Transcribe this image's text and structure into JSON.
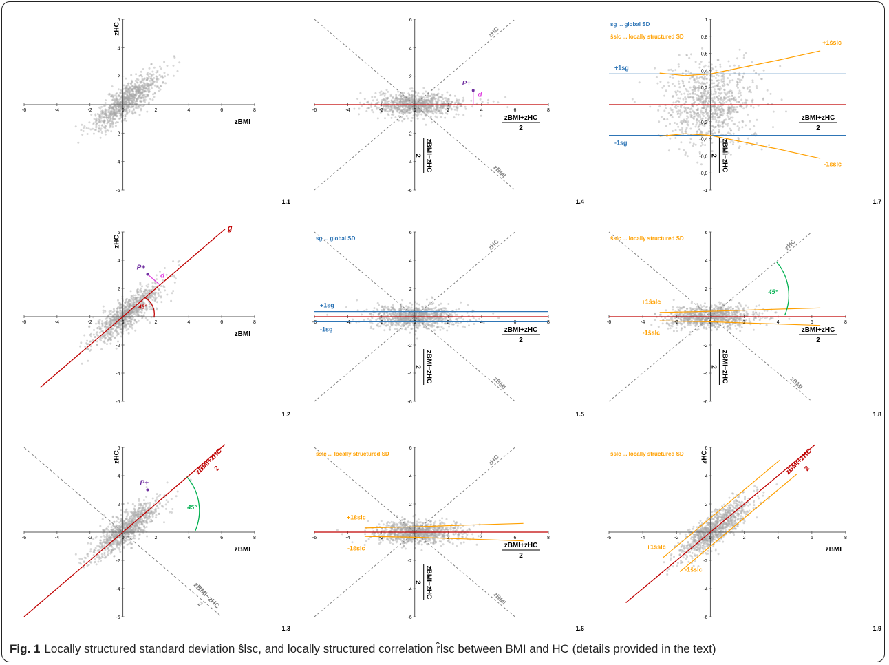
{
  "figure": {
    "caption_label": "Fig. 1",
    "caption_text": "Locally structured standard deviation ŝlsc, and locally structured correlation r̂lsc between BMI and HC (details provided in the text)"
  },
  "chart_data": [
    {
      "id": "1.1",
      "type": "scatter",
      "xlabel": "zBMI",
      "ylabel": "zHC",
      "xlim": [
        -6,
        8
      ],
      "ylim": [
        -6,
        6
      ],
      "xticks": [
        -6,
        -4,
        -2,
        0,
        2,
        4,
        6,
        8
      ],
      "yticks": [
        -6,
        -4,
        -2,
        0,
        2,
        4,
        6
      ],
      "cloud": {
        "orientation": "diagonal",
        "spread_major": 1.3,
        "spread_minor": 0.4
      }
    },
    {
      "id": "1.2",
      "type": "scatter",
      "xlabel": "zBMI",
      "ylabel": "zHC",
      "xlim": [
        -6,
        8
      ],
      "ylim": [
        -6,
        6
      ],
      "xticks": [
        -6,
        -4,
        -2,
        0,
        2,
        4,
        6,
        8
      ],
      "yticks": [
        -6,
        -4,
        -2,
        0,
        2,
        4,
        6
      ],
      "cloud": {
        "orientation": "diagonal",
        "spread_major": 1.3,
        "spread_minor": 0.4
      },
      "line_g": {
        "x1": -5,
        "x2": 6.2
      },
      "line_label": "g",
      "angle_label": "45°",
      "point_label": "P+",
      "distance_label": "d"
    },
    {
      "id": "1.3",
      "type": "scatter",
      "xlabel": "zBMI",
      "ylabel": "zHC",
      "xlim": [
        -6,
        8
      ],
      "ylim": [
        -6,
        6
      ],
      "xticks": [
        -6,
        -4,
        -2,
        0,
        2,
        4,
        6,
        8
      ],
      "yticks": [
        -6,
        -4,
        -2,
        0,
        2,
        4,
        6
      ],
      "cloud": {
        "orientation": "diagonal",
        "spread_major": 1.3,
        "spread_minor": 0.4
      },
      "rotated_axis_num": "zBMI+zHC",
      "rotated_axis_den": "2",
      "dashed_axis_num": "zBMI−zHC",
      "dashed_axis_den": "2",
      "angle_label": "45°",
      "point_label": "P+"
    },
    {
      "id": "1.4",
      "type": "scatter",
      "xlabel_num": "zBMI+zHC",
      "xlabel_den": "2",
      "ylabel_num": "zBMI−zHC",
      "ylabel_den": "2",
      "xlim": [
        -6,
        8
      ],
      "ylim": [
        -6,
        6
      ],
      "xticks": [
        -6,
        -4,
        -2,
        0,
        2,
        4,
        6,
        8
      ],
      "yticks": [
        -6,
        -4,
        -2,
        0,
        2,
        4,
        6
      ],
      "cloud": {
        "orientation": "horizontal",
        "spread_major": 1.3,
        "spread_minor": 0.4
      },
      "diag_labels": [
        "zHC",
        "zBMI"
      ],
      "point_label": "P+",
      "distance_label": "d"
    },
    {
      "id": "1.5",
      "type": "scatter",
      "xlabel_num": "zBMI+zHC",
      "xlabel_den": "2",
      "ylabel_num": "zBMI−zHC",
      "ylabel_den": "2",
      "xlim": [
        -6,
        8
      ],
      "ylim": [
        -6,
        6
      ],
      "xticks": [
        -6,
        -4,
        -2,
        0,
        2,
        4,
        6,
        8
      ],
      "yticks": [
        -6,
        -4,
        -2,
        0,
        2,
        4,
        6
      ],
      "cloud": {
        "orientation": "horizontal",
        "spread_major": 1.3,
        "spread_minor": 0.4
      },
      "diag_labels": [
        "zHC",
        "zBMI"
      ],
      "legend_text": "sg ... global SD",
      "band_sd": 0.36,
      "band_labels": [
        "+1sg",
        "-1sg"
      ]
    },
    {
      "id": "1.6",
      "type": "scatter",
      "xlabel_num": "zBMI+zHC",
      "xlabel_den": "2",
      "ylabel_num": "zBMI−zHC",
      "ylabel_den": "2",
      "xlim": [
        -6,
        8
      ],
      "ylim": [
        -6,
        6
      ],
      "xticks": [
        -6,
        -4,
        -2,
        0,
        2,
        4,
        6,
        8
      ],
      "yticks": [
        -6,
        -4,
        -2,
        0,
        2,
        4,
        6
      ],
      "cloud": {
        "orientation": "horizontal",
        "spread_major": 1.3,
        "spread_minor": 0.4
      },
      "diag_labels": [
        "zHC",
        "zBMI"
      ],
      "legend_text": "ŝslc ... locally structured SD",
      "local_sd_upper": [
        [
          -3,
          0.3
        ],
        [
          0,
          0.38
        ],
        [
          3,
          0.5
        ],
        [
          6.5,
          0.62
        ]
      ],
      "local_sd_lower": [
        [
          -3,
          -0.3
        ],
        [
          0,
          -0.36
        ],
        [
          3,
          -0.48
        ],
        [
          6.5,
          -0.62
        ]
      ],
      "band_labels": [
        "+1ŝslc",
        "-1ŝslc"
      ]
    },
    {
      "id": "1.7",
      "type": "scatter",
      "xlabel_num": "zBMI+zHC",
      "xlabel_den": "2",
      "ylabel_num": "zBMI−zHC",
      "ylabel_den": "2",
      "xlim": [
        -6,
        8
      ],
      "ylim": [
        -1,
        1
      ],
      "yticks": [
        -1,
        -0.8,
        -0.6,
        -0.4,
        -0.2,
        0,
        0.2,
        0.4,
        0.6,
        0.8,
        1
      ],
      "ytick_labels": [
        "-1",
        "-0,8",
        "-0,6",
        "-0,4",
        "-0,2",
        "0",
        "0,2",
        "0,4",
        "0,6",
        "0,8",
        "1"
      ],
      "cloud": {
        "orientation": "horizontal",
        "spread_major": 1.3,
        "spread_minor": 0.4
      },
      "legend_lines": [
        "sg ... global SD",
        "ŝslc ... locally structured SD"
      ],
      "band_sd": 0.36,
      "band_labels": [
        "+1sg",
        "-1sg"
      ],
      "local_sd_upper": [
        [
          -3,
          0.37
        ],
        [
          -1.5,
          0.34
        ],
        [
          0,
          0.36
        ],
        [
          2,
          0.44
        ],
        [
          4,
          0.52
        ],
        [
          6.5,
          0.63
        ]
      ],
      "local_sd_lower": [
        [
          -3,
          -0.37
        ],
        [
          -1.5,
          -0.34
        ],
        [
          0,
          -0.36
        ],
        [
          2,
          -0.44
        ],
        [
          4,
          -0.52
        ],
        [
          6.5,
          -0.63
        ]
      ],
      "local_labels": [
        "+1ŝslc",
        "-1ŝslc"
      ]
    },
    {
      "id": "1.8",
      "type": "scatter",
      "xlabel_num": "zBMI+zHC",
      "xlabel_den": "2",
      "ylabel_num": "zBMI−zHC",
      "ylabel_den": "2",
      "xlim": [
        -6,
        8
      ],
      "ylim": [
        -6,
        6
      ],
      "xticks": [
        -6,
        -4,
        -2,
        0,
        2,
        4,
        6,
        8
      ],
      "yticks": [
        -6,
        -4,
        -2,
        0,
        2,
        4,
        6
      ],
      "cloud": {
        "orientation": "horizontal",
        "spread_major": 1.3,
        "spread_minor": 0.4
      },
      "diag_labels": [
        "zHC",
        "zBMI"
      ],
      "legend_text": "ŝslc ... locally structured SD",
      "local_sd_upper": [
        [
          -3,
          0.3
        ],
        [
          0,
          0.38
        ],
        [
          3,
          0.5
        ],
        [
          6.5,
          0.62
        ]
      ],
      "local_sd_lower": [
        [
          -3,
          -0.3
        ],
        [
          0,
          -0.36
        ],
        [
          3,
          -0.48
        ],
        [
          6.5,
          -0.62
        ]
      ],
      "band_labels": [
        "+1ŝslc",
        "-1ŝslc"
      ],
      "angle_label": "45°"
    },
    {
      "id": "1.9",
      "type": "scatter",
      "xlabel": "zBMI",
      "ylabel": "zHC",
      "xlim": [
        -6,
        8
      ],
      "ylim": [
        -6,
        6
      ],
      "xticks": [
        -6,
        -4,
        -2,
        0,
        2,
        4,
        6,
        8
      ],
      "yticks": [
        -6,
        -4,
        -2,
        0,
        2,
        4,
        6
      ],
      "cloud": {
        "orientation": "diagonal",
        "spread_major": 1.3,
        "spread_minor": 0.4
      },
      "legend_text": "ŝslc ... locally structured SD",
      "rotated_axis_num": "zBMI+zHC",
      "rotated_axis_den": "2",
      "band_labels": [
        "+1ŝslc",
        "-1ŝslc"
      ]
    }
  ],
  "colors": {
    "dots": "#a6a6a6",
    "axis": "#555555",
    "red": "#c00000",
    "blue": "#2e75b6",
    "orange": "#ffa000",
    "green": "#00b050",
    "purple": "#7030a0",
    "magenta": "#e040e0",
    "dash": "#7f7f7f"
  }
}
